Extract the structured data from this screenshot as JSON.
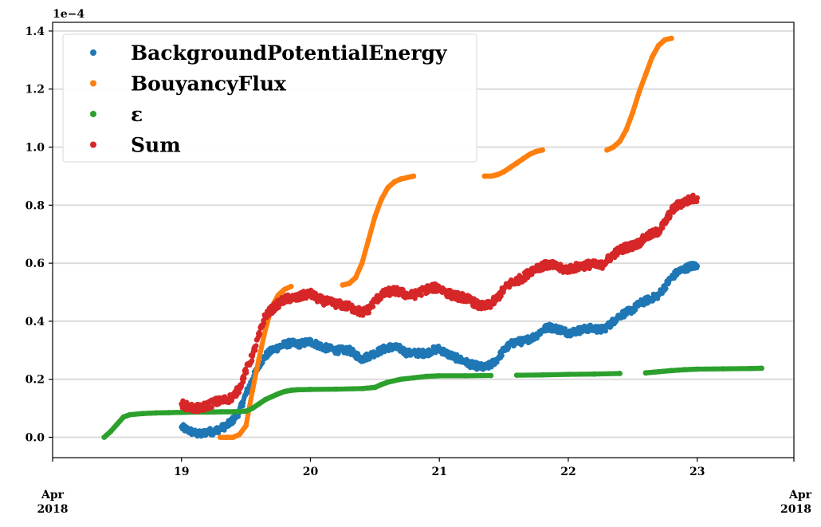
{
  "chart_data": {
    "type": "scatter",
    "title": "",
    "xlabel": "",
    "ylabel": "",
    "y_exponent_label": "1e−4",
    "xlim": [
      18.0,
      23.75
    ],
    "ylim": [
      -0.07,
      1.43
    ],
    "grid": "horizontal",
    "legend_position": "top-left",
    "x_ticks": [
      {
        "value": 19,
        "label": "19"
      },
      {
        "value": 20,
        "label": "20"
      },
      {
        "value": 21,
        "label": "21"
      },
      {
        "value": 22,
        "label": "22"
      },
      {
        "value": 23,
        "label": "23"
      }
    ],
    "x_edge_labels": [
      {
        "value": 18.0,
        "line1": "Apr",
        "line2": "2018"
      },
      {
        "value": 23.75,
        "line1": "Apr",
        "line2": "2018"
      }
    ],
    "y_ticks": [
      {
        "value": 0.0,
        "label": "0.0"
      },
      {
        "value": 0.2,
        "label": "0.2"
      },
      {
        "value": 0.4,
        "label": "0.4"
      },
      {
        "value": 0.6,
        "label": "0.6"
      },
      {
        "value": 0.8,
        "label": "0.8"
      },
      {
        "value": 1.0,
        "label": "1.0"
      },
      {
        "value": 1.2,
        "label": "1.2"
      },
      {
        "value": 1.4,
        "label": "1.4"
      }
    ],
    "series": [
      {
        "name": "BackgroundPotentialEnergy",
        "color": "#1f77b4",
        "points": [
          [
            19.0,
            0.035
          ],
          [
            19.05,
            0.025
          ],
          [
            19.1,
            0.015
          ],
          [
            19.15,
            0.01
          ],
          [
            19.2,
            0.02
          ],
          [
            19.25,
            0.02
          ],
          [
            19.3,
            0.03
          ],
          [
            19.35,
            0.04
          ],
          [
            19.4,
            0.06
          ],
          [
            19.45,
            0.09
          ],
          [
            19.5,
            0.15
          ],
          [
            19.55,
            0.2
          ],
          [
            19.6,
            0.25
          ],
          [
            19.65,
            0.28
          ],
          [
            19.7,
            0.3
          ],
          [
            19.75,
            0.31
          ],
          [
            19.8,
            0.32
          ],
          [
            19.85,
            0.325
          ],
          [
            19.9,
            0.32
          ],
          [
            19.95,
            0.325
          ],
          [
            20.0,
            0.33
          ],
          [
            20.05,
            0.32
          ],
          [
            20.1,
            0.31
          ],
          [
            20.15,
            0.305
          ],
          [
            20.2,
            0.3
          ],
          [
            20.25,
            0.3
          ],
          [
            20.3,
            0.3
          ],
          [
            20.35,
            0.285
          ],
          [
            20.4,
            0.27
          ],
          [
            20.45,
            0.28
          ],
          [
            20.5,
            0.29
          ],
          [
            20.55,
            0.3
          ],
          [
            20.6,
            0.31
          ],
          [
            20.65,
            0.31
          ],
          [
            20.7,
            0.305
          ],
          [
            20.75,
            0.29
          ],
          [
            20.8,
            0.29
          ],
          [
            20.85,
            0.29
          ],
          [
            20.9,
            0.29
          ],
          [
            20.95,
            0.3
          ],
          [
            21.0,
            0.305
          ],
          [
            21.05,
            0.29
          ],
          [
            21.1,
            0.28
          ],
          [
            21.15,
            0.27
          ],
          [
            21.2,
            0.26
          ],
          [
            21.25,
            0.25
          ],
          [
            21.3,
            0.245
          ],
          [
            21.35,
            0.24
          ],
          [
            21.4,
            0.25
          ],
          [
            21.45,
            0.27
          ],
          [
            21.5,
            0.3
          ],
          [
            21.55,
            0.32
          ],
          [
            21.6,
            0.33
          ],
          [
            21.65,
            0.33
          ],
          [
            21.7,
            0.34
          ],
          [
            21.75,
            0.35
          ],
          [
            21.8,
            0.37
          ],
          [
            21.85,
            0.38
          ],
          [
            21.9,
            0.375
          ],
          [
            21.95,
            0.37
          ],
          [
            22.0,
            0.36
          ],
          [
            22.05,
            0.365
          ],
          [
            22.1,
            0.37
          ],
          [
            22.15,
            0.375
          ],
          [
            22.2,
            0.375
          ],
          [
            22.25,
            0.37
          ],
          [
            22.3,
            0.38
          ],
          [
            22.35,
            0.4
          ],
          [
            22.4,
            0.42
          ],
          [
            22.45,
            0.43
          ],
          [
            22.5,
            0.44
          ],
          [
            22.55,
            0.46
          ],
          [
            22.6,
            0.47
          ],
          [
            22.65,
            0.48
          ],
          [
            22.7,
            0.49
          ],
          [
            22.75,
            0.52
          ],
          [
            22.8,
            0.55
          ],
          [
            22.85,
            0.57
          ],
          [
            22.9,
            0.58
          ],
          [
            22.95,
            0.59
          ],
          [
            23.0,
            0.59
          ]
        ]
      },
      {
        "name": "BouyancyFlux",
        "color": "#ff7f0e",
        "points": [
          [
            19.3,
            0.0
          ],
          [
            19.35,
            0.0
          ],
          [
            19.4,
            0.0
          ],
          [
            19.45,
            0.01
          ],
          [
            19.5,
            0.04
          ],
          [
            19.55,
            0.16
          ],
          [
            19.6,
            0.27
          ],
          [
            19.65,
            0.37
          ],
          [
            19.7,
            0.45
          ],
          [
            19.75,
            0.49
          ],
          [
            19.8,
            0.51
          ],
          [
            19.85,
            0.52
          ],
          [
            20.25,
            0.525
          ],
          [
            20.3,
            0.53
          ],
          [
            20.35,
            0.55
          ],
          [
            20.4,
            0.6
          ],
          [
            20.45,
            0.68
          ],
          [
            20.5,
            0.76
          ],
          [
            20.55,
            0.82
          ],
          [
            20.6,
            0.86
          ],
          [
            20.65,
            0.88
          ],
          [
            20.7,
            0.89
          ],
          [
            20.75,
            0.895
          ],
          [
            20.8,
            0.9
          ],
          [
            21.35,
            0.9
          ],
          [
            21.4,
            0.9
          ],
          [
            21.45,
            0.905
          ],
          [
            21.5,
            0.915
          ],
          [
            21.55,
            0.93
          ],
          [
            21.6,
            0.945
          ],
          [
            21.65,
            0.96
          ],
          [
            21.7,
            0.975
          ],
          [
            21.75,
            0.985
          ],
          [
            21.8,
            0.99
          ],
          [
            22.3,
            0.99
          ],
          [
            22.35,
            1.0
          ],
          [
            22.4,
            1.02
          ],
          [
            22.45,
            1.06
          ],
          [
            22.5,
            1.12
          ],
          [
            22.55,
            1.19
          ],
          [
            22.6,
            1.25
          ],
          [
            22.65,
            1.31
          ],
          [
            22.7,
            1.35
          ],
          [
            22.75,
            1.37
          ],
          [
            22.8,
            1.375
          ]
        ]
      },
      {
        "name": "ε",
        "color": "#2ca02c",
        "points": [
          [
            18.4,
            0.0
          ],
          [
            18.45,
            0.02
          ],
          [
            18.5,
            0.045
          ],
          [
            18.55,
            0.07
          ],
          [
            18.6,
            0.078
          ],
          [
            18.7,
            0.082
          ],
          [
            18.8,
            0.084
          ],
          [
            18.9,
            0.085
          ],
          [
            19.0,
            0.086
          ],
          [
            19.1,
            0.087
          ],
          [
            19.2,
            0.087
          ],
          [
            19.3,
            0.088
          ],
          [
            19.4,
            0.088
          ],
          [
            19.5,
            0.09
          ],
          [
            19.55,
            0.1
          ],
          [
            19.6,
            0.115
          ],
          [
            19.65,
            0.13
          ],
          [
            19.7,
            0.14
          ],
          [
            19.75,
            0.15
          ],
          [
            19.8,
            0.158
          ],
          [
            19.85,
            0.162
          ],
          [
            19.9,
            0.164
          ],
          [
            20.0,
            0.165
          ],
          [
            20.2,
            0.166
          ],
          [
            20.4,
            0.168
          ],
          [
            20.5,
            0.172
          ],
          [
            20.55,
            0.182
          ],
          [
            20.6,
            0.19
          ],
          [
            20.7,
            0.2
          ],
          [
            20.8,
            0.205
          ],
          [
            20.9,
            0.21
          ],
          [
            21.0,
            0.212
          ],
          [
            21.2,
            0.212
          ],
          [
            21.4,
            0.213
          ],
          [
            21.6,
            0.214
          ],
          [
            21.8,
            0.215
          ],
          [
            22.0,
            0.217
          ],
          [
            22.2,
            0.218
          ],
          [
            22.4,
            0.22
          ],
          [
            22.6,
            0.222
          ],
          [
            22.7,
            0.226
          ],
          [
            22.8,
            0.23
          ],
          [
            22.9,
            0.233
          ],
          [
            23.0,
            0.235
          ],
          [
            23.2,
            0.236
          ],
          [
            23.4,
            0.237
          ],
          [
            23.5,
            0.238
          ]
        ]
      },
      {
        "name": "Sum",
        "color": "#d62728",
        "points": [
          [
            19.0,
            0.115
          ],
          [
            19.05,
            0.105
          ],
          [
            19.1,
            0.1
          ],
          [
            19.15,
            0.1
          ],
          [
            19.2,
            0.11
          ],
          [
            19.25,
            0.12
          ],
          [
            19.3,
            0.125
          ],
          [
            19.35,
            0.13
          ],
          [
            19.4,
            0.14
          ],
          [
            19.45,
            0.17
          ],
          [
            19.5,
            0.23
          ],
          [
            19.55,
            0.28
          ],
          [
            19.6,
            0.35
          ],
          [
            19.65,
            0.42
          ],
          [
            19.7,
            0.44
          ],
          [
            19.75,
            0.46
          ],
          [
            19.8,
            0.475
          ],
          [
            19.85,
            0.48
          ],
          [
            19.9,
            0.48
          ],
          [
            19.95,
            0.49
          ],
          [
            20.0,
            0.495
          ],
          [
            20.05,
            0.48
          ],
          [
            20.1,
            0.47
          ],
          [
            20.15,
            0.465
          ],
          [
            20.2,
            0.46
          ],
          [
            20.25,
            0.455
          ],
          [
            20.3,
            0.45
          ],
          [
            20.35,
            0.44
          ],
          [
            20.4,
            0.43
          ],
          [
            20.45,
            0.44
          ],
          [
            20.5,
            0.47
          ],
          [
            20.55,
            0.49
          ],
          [
            20.6,
            0.5
          ],
          [
            20.65,
            0.505
          ],
          [
            20.7,
            0.5
          ],
          [
            20.75,
            0.49
          ],
          [
            20.8,
            0.49
          ],
          [
            20.85,
            0.5
          ],
          [
            20.9,
            0.51
          ],
          [
            20.95,
            0.515
          ],
          [
            21.0,
            0.515
          ],
          [
            21.05,
            0.5
          ],
          [
            21.1,
            0.49
          ],
          [
            21.15,
            0.485
          ],
          [
            21.2,
            0.48
          ],
          [
            21.25,
            0.47
          ],
          [
            21.3,
            0.455
          ],
          [
            21.35,
            0.45
          ],
          [
            21.4,
            0.46
          ],
          [
            21.45,
            0.48
          ],
          [
            21.5,
            0.51
          ],
          [
            21.55,
            0.53
          ],
          [
            21.6,
            0.54
          ],
          [
            21.65,
            0.55
          ],
          [
            21.7,
            0.57
          ],
          [
            21.75,
            0.585
          ],
          [
            21.8,
            0.59
          ],
          [
            21.85,
            0.595
          ],
          [
            21.9,
            0.59
          ],
          [
            21.95,
            0.58
          ],
          [
            22.0,
            0.58
          ],
          [
            22.05,
            0.585
          ],
          [
            22.1,
            0.59
          ],
          [
            22.15,
            0.595
          ],
          [
            22.2,
            0.595
          ],
          [
            22.25,
            0.59
          ],
          [
            22.3,
            0.61
          ],
          [
            22.35,
            0.63
          ],
          [
            22.4,
            0.645
          ],
          [
            22.45,
            0.655
          ],
          [
            22.5,
            0.66
          ],
          [
            22.55,
            0.67
          ],
          [
            22.6,
            0.69
          ],
          [
            22.65,
            0.7
          ],
          [
            22.7,
            0.71
          ],
          [
            22.75,
            0.74
          ],
          [
            22.8,
            0.78
          ],
          [
            22.85,
            0.8
          ],
          [
            22.9,
            0.81
          ],
          [
            22.95,
            0.82
          ],
          [
            23.0,
            0.825
          ]
        ]
      }
    ]
  }
}
